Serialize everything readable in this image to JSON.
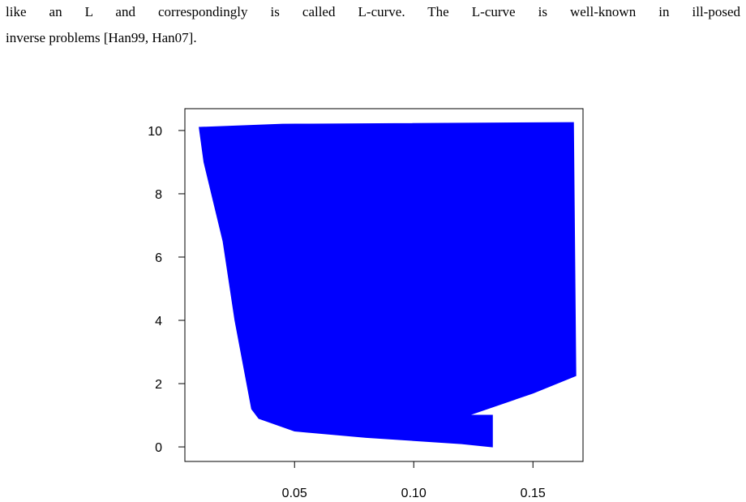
{
  "text": {
    "lines": [
      "like an L and correspondingly is called L-curve. The L-curve is well-known in ill-posed",
      "inverse problems [Han99, Han07]."
    ]
  },
  "chart_data": {
    "type": "polygon",
    "color": "#0000ff",
    "x": [
      0.01,
      0.045,
      0.167,
      0.168,
      0.15,
      0.123,
      0.133,
      0.133,
      0.12,
      0.08,
      0.05,
      0.035,
      0.032,
      0.025,
      0.02,
      0.012
    ],
    "y": [
      10.1,
      10.2,
      10.25,
      2.25,
      1.7,
      1.0,
      1.0,
      0.0,
      0.1,
      0.3,
      0.5,
      0.9,
      1.2,
      4.0,
      6.5,
      9.0
    ],
    "xlim": [
      0.004,
      0.171
    ],
    "ylim": [
      -0.46,
      10.69
    ],
    "xticks": [
      0.05,
      {
        "value": 0.1,
        "label": "0.10"
      },
      0.15
    ],
    "yticks": [
      0,
      2,
      4,
      6,
      8,
      10
    ]
  }
}
